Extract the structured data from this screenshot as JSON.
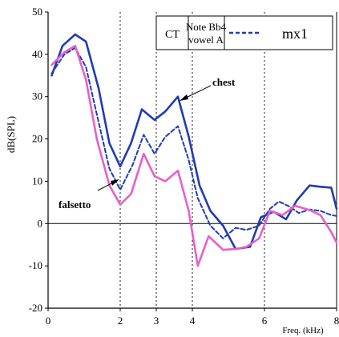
{
  "chart_data": {
    "type": "line",
    "title": "",
    "xlabel": "Freq. (kHz)",
    "ylabel": "dB(SPL)",
    "xlim": [
      0,
      8
    ],
    "ylim": [
      -20,
      50
    ],
    "x_ticks": [
      0,
      2,
      3,
      4,
      6,
      8
    ],
    "y_ticks": [
      -20,
      -10,
      0,
      10,
      20,
      30,
      40,
      50
    ],
    "vertical_reference_lines": [
      2,
      3,
      4,
      6
    ],
    "horizontal_reference_line": 0,
    "legend": {
      "position": "top-right",
      "cells": [
        "CT",
        "Note Bb4",
        "vowel A",
        "mx1"
      ]
    },
    "annotations": [
      {
        "text": "chest",
        "series": "chest"
      },
      {
        "text": "falsetto",
        "series": "falsetto"
      }
    ],
    "series": [
      {
        "name": "chest",
        "color": "#1f3cb4",
        "style": "solid",
        "points": [
          [
            0.1,
            35
          ],
          [
            0.4,
            42
          ],
          [
            0.75,
            44.7
          ],
          [
            1.05,
            43
          ],
          [
            1.4,
            32
          ],
          [
            1.7,
            19
          ],
          [
            2.0,
            13.5
          ],
          [
            2.3,
            19
          ],
          [
            2.6,
            27
          ],
          [
            2.95,
            24.5
          ],
          [
            3.25,
            26.5
          ],
          [
            3.6,
            30
          ],
          [
            3.9,
            20.5
          ],
          [
            4.2,
            9
          ],
          [
            4.5,
            3
          ],
          [
            4.85,
            -0.5
          ],
          [
            5.2,
            -6
          ],
          [
            5.6,
            -5.5
          ],
          [
            5.9,
            1.5
          ],
          [
            6.25,
            2.8
          ],
          [
            6.6,
            1
          ],
          [
            6.9,
            5.5
          ],
          [
            7.25,
            9
          ],
          [
            7.55,
            8.7
          ],
          [
            7.85,
            8.5
          ],
          [
            8.0,
            3.5
          ]
        ]
      },
      {
        "name": "mx1",
        "color": "#1f3cb4",
        "style": "dashed",
        "points": [
          [
            0.1,
            35.5
          ],
          [
            0.45,
            40
          ],
          [
            0.75,
            41.5
          ],
          [
            1.05,
            37
          ],
          [
            1.4,
            24
          ],
          [
            1.7,
            13
          ],
          [
            2.0,
            8
          ],
          [
            2.35,
            14
          ],
          [
            2.65,
            21
          ],
          [
            2.95,
            16.5
          ],
          [
            3.25,
            20.5
          ],
          [
            3.6,
            23
          ],
          [
            3.9,
            15
          ],
          [
            4.15,
            6
          ],
          [
            4.5,
            -0.5
          ],
          [
            4.85,
            -3.5
          ],
          [
            5.2,
            -1
          ],
          [
            5.5,
            -1.5
          ],
          [
            5.85,
            -0.5
          ],
          [
            6.15,
            3.5
          ],
          [
            6.4,
            5.2
          ],
          [
            6.7,
            4
          ],
          [
            6.95,
            2.5
          ],
          [
            7.25,
            3.3
          ],
          [
            7.55,
            3
          ],
          [
            7.85,
            2
          ],
          [
            8.0,
            1.8
          ]
        ]
      },
      {
        "name": "falsetto",
        "color": "#e85fc8",
        "style": "solid",
        "points": [
          [
            0.1,
            37.5
          ],
          [
            0.45,
            40.5
          ],
          [
            0.75,
            42
          ],
          [
            1.05,
            34
          ],
          [
            1.35,
            20
          ],
          [
            1.7,
            9
          ],
          [
            2.0,
            4.5
          ],
          [
            2.3,
            7
          ],
          [
            2.65,
            16.5
          ],
          [
            2.95,
            11.2
          ],
          [
            3.25,
            10
          ],
          [
            3.6,
            12.5
          ],
          [
            3.9,
            3
          ],
          [
            4.15,
            -10
          ],
          [
            4.45,
            -3
          ],
          [
            4.85,
            -6.2
          ],
          [
            5.2,
            -6
          ],
          [
            5.5,
            -5.5
          ],
          [
            5.85,
            -3.5
          ],
          [
            6.15,
            3
          ],
          [
            6.5,
            2
          ],
          [
            6.85,
            4.2
          ],
          [
            7.25,
            3.2
          ],
          [
            7.55,
            2
          ],
          [
            7.85,
            -2
          ],
          [
            8.0,
            -4.5
          ]
        ]
      }
    ]
  }
}
